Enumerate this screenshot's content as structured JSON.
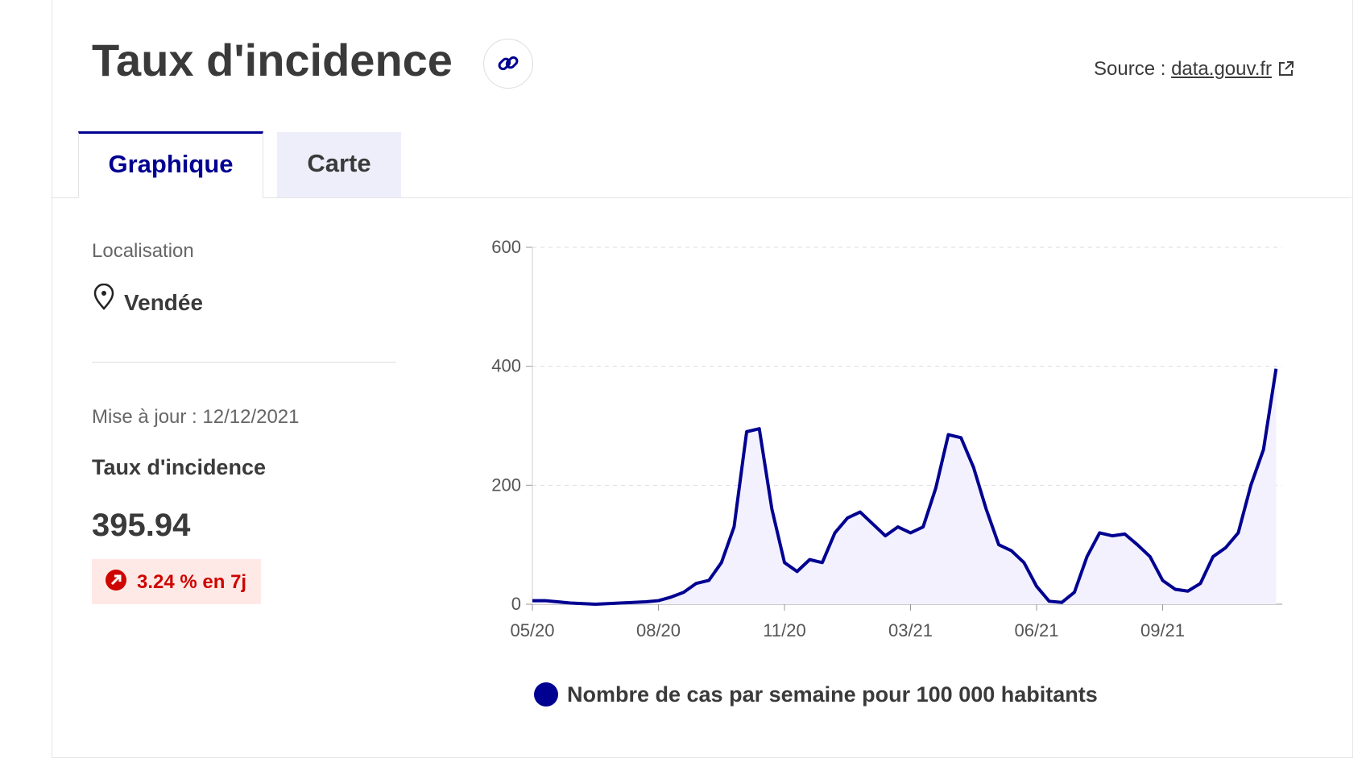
{
  "header": {
    "title": "Taux d'incidence",
    "source_label": "Source :",
    "source_link": "data.gouv.fr"
  },
  "tabs": [
    "Graphique",
    "Carte"
  ],
  "sidebar": {
    "location_label": "Localisation",
    "location": "Vendée",
    "updated": "Mise à jour : 12/12/2021",
    "metric_label": "Taux d'incidence",
    "metric_value": "395.94",
    "change": "3.24 % en 7j"
  },
  "chart_data": {
    "type": "line",
    "categories": [
      "05/20",
      null,
      null,
      null,
      null,
      null,
      null,
      null,
      null,
      null,
      "08/20",
      null,
      null,
      null,
      null,
      null,
      null,
      null,
      null,
      null,
      "11/20",
      null,
      null,
      null,
      null,
      null,
      null,
      null,
      null,
      null,
      "03/21",
      null,
      null,
      null,
      null,
      null,
      null,
      null,
      null,
      null,
      "06/21",
      null,
      null,
      null,
      null,
      null,
      null,
      null,
      null,
      null,
      "09/21",
      null,
      null,
      null,
      null,
      null,
      null,
      null,
      null,
      null
    ],
    "series": [
      {
        "name": "Nombre de cas par semaine pour 100 000 habitants",
        "color": "#000091",
        "values": [
          6,
          6,
          4,
          2,
          1,
          0,
          1,
          2,
          3,
          4,
          6,
          12,
          20,
          35,
          40,
          70,
          130,
          290,
          295,
          160,
          70,
          55,
          75,
          70,
          120,
          145,
          155,
          135,
          115,
          130,
          120,
          130,
          195,
          285,
          280,
          230,
          160,
          100,
          90,
          70,
          30,
          5,
          3,
          20,
          80,
          120,
          115,
          118,
          100,
          80,
          40,
          25,
          22,
          35,
          80,
          95,
          120,
          200,
          260,
          395.94
        ]
      }
    ],
    "ylim": [
      0,
      600
    ],
    "yticks": [
      0,
      200,
      400,
      600
    ],
    "grid": true
  }
}
